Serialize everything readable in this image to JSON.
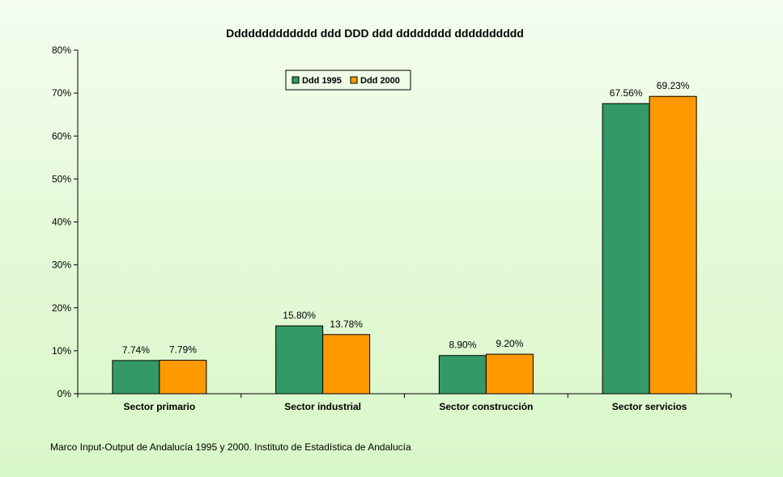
{
  "chart_data": {
    "type": "bar",
    "title": "Ddddddddddddd ddd DDD ddd dddddddd dddddddddd",
    "categories": [
      "Sector primario",
      "Sector industrial",
      "Sector construcción",
      "Sector servicios"
    ],
    "series": [
      {
        "name": "Ddd 1995",
        "color": "#339966",
        "values": [
          7.74,
          15.8,
          8.9,
          67.56
        ],
        "labels": [
          "7.74%",
          "15.80%",
          "8.90%",
          "67.56%"
        ]
      },
      {
        "name": "Ddd 2000",
        "color": "#ff9900",
        "values": [
          7.79,
          13.78,
          9.2,
          69.23
        ],
        "labels": [
          "7.79%",
          "13.78%",
          "9.20%",
          "69.23%"
        ]
      }
    ],
    "ylim": [
      0,
      80
    ],
    "yticks": [
      0,
      10,
      20,
      30,
      40,
      50,
      60,
      70,
      80
    ],
    "ytick_labels": [
      "0%",
      "10%",
      "20%",
      "30%",
      "40%",
      "50%",
      "60%",
      "70%",
      "80%"
    ],
    "xlabel": "",
    "ylabel": "",
    "legend": "top-center",
    "grid": false
  },
  "source_note": "Marco Input-Output de Andalucía 1995 y 2000. Instituto de Estadística de Andalucía"
}
